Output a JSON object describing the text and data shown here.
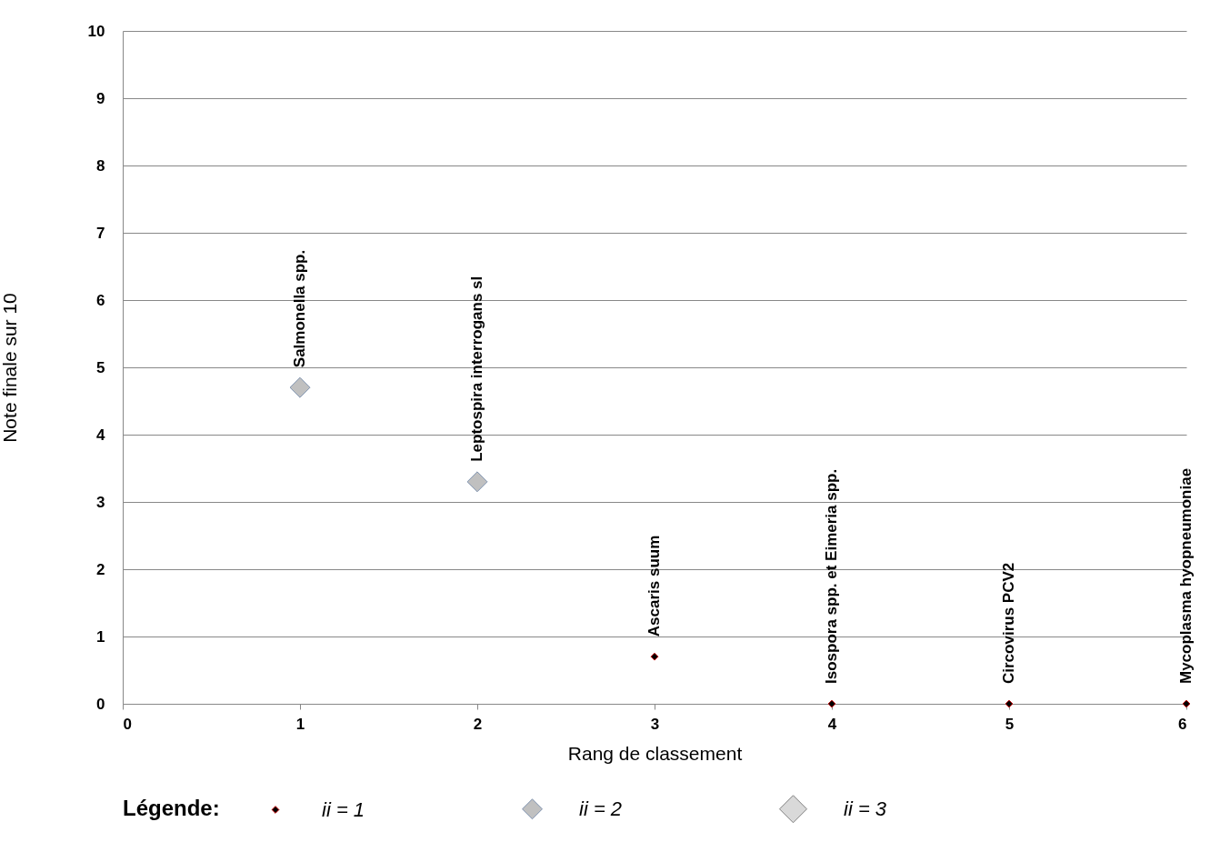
{
  "chart_data": {
    "type": "scatter",
    "xlabel": "Rang de classement",
    "ylabel": "Note finale sur 10",
    "legend_title": "Légende:",
    "xlim": [
      0,
      6
    ],
    "xticks": [
      0,
      1,
      2,
      3,
      4,
      5,
      6
    ],
    "ylim": [
      0,
      10
    ],
    "yticks": [
      0,
      1,
      2,
      3,
      4,
      5,
      6,
      7,
      8,
      9,
      10
    ],
    "grid": "y",
    "legend": "bottom",
    "marker": "diamond",
    "series": [
      {
        "name": "ii = 1",
        "color": "#000000",
        "x": [
          3,
          4,
          5,
          6
        ],
        "values": [
          0.7,
          0,
          0,
          0
        ]
      },
      {
        "name": "ii = 2",
        "color": "#c0c0c0",
        "x": [
          1,
          2
        ],
        "values": [
          4.7,
          3.3
        ]
      },
      {
        "name": "ii = 3",
        "color": "#d9d9d9"
      }
    ],
    "annotations": [
      {
        "text": "Salmonella spp.",
        "x": 1,
        "y": 4.7
      },
      {
        "text": "Leptospira interrogans sl",
        "x": 2,
        "y": 3.3
      },
      {
        "text": "Ascaris suum",
        "x": 3,
        "y": 0.7
      },
      {
        "text": "Isospora spp. et Eimeria spp.",
        "x": 4,
        "y": 0
      },
      {
        "text": "Circovirus PCV2",
        "x": 5,
        "y": 0
      },
      {
        "text": "Mycoplasma hyopneumoniae",
        "x": 6,
        "y": 0
      }
    ]
  }
}
